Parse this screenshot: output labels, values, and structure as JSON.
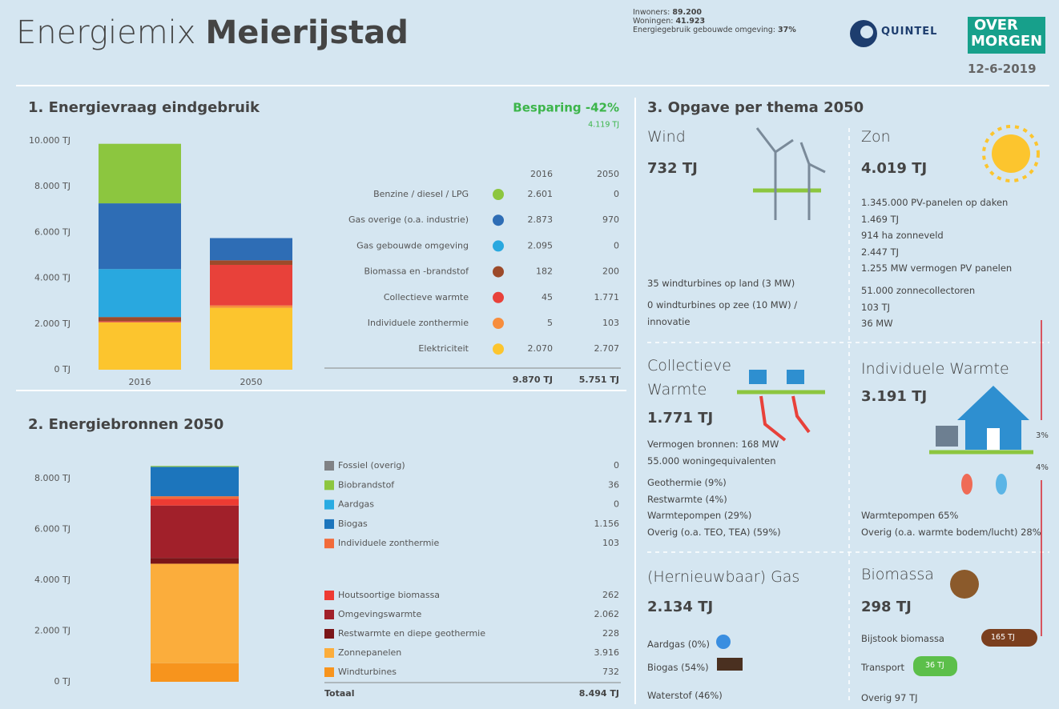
{
  "header": {
    "title_light": "Energiemix",
    "title_bold": "Meierijstad",
    "info": [
      {
        "label": "Inwoners:",
        "value": "89.200"
      },
      {
        "label": "Woningen:",
        "value": "41.923"
      },
      {
        "label": "Energiegebruik gebouwde omgeving:",
        "value": "37%"
      }
    ],
    "logo1": "QUINTEL",
    "logo2_line1": "OVER",
    "logo2_line2": "MORGEN",
    "date": "12-6-2019"
  },
  "sections": [
    "1. Energievraag eindgebruik",
    "2. Energiebronnen 2050",
    "3. Opgave per thema 2050"
  ],
  "chart_data": [
    {
      "type": "stacked_bar",
      "categories": [
        "2016",
        "2050"
      ],
      "ylim": [
        0,
        10000
      ],
      "yticks": [
        {
          "value": 0,
          "label": "0 TJ"
        },
        {
          "value": 2000,
          "label": "2.000 TJ"
        },
        {
          "value": 4000,
          "label": "4.000 TJ"
        },
        {
          "value": 6000,
          "label": "6.000 TJ"
        },
        {
          "value": 8000,
          "label": "8.000 TJ"
        },
        {
          "value": 10000,
          "label": "10.000 TJ"
        }
      ],
      "series": [
        {
          "name": "Elektriciteit",
          "color": "#fcc52e",
          "values": [
            2070,
            2707
          ],
          "value_labels": [
            "2.070",
            "2.707"
          ]
        },
        {
          "name": "Individuele zonthermie",
          "color": "#f78d3d",
          "values": [
            5,
            103
          ],
          "value_labels": [
            "5",
            "103"
          ]
        },
        {
          "name": "Collectieve warmte",
          "color": "#e8413a",
          "values": [
            45,
            1771
          ],
          "value_labels": [
            "45",
            "1.771"
          ]
        },
        {
          "name": "Biomassa en -brandstof",
          "color": "#9c4a2a",
          "values": [
            182,
            200
          ],
          "value_labels": [
            "182",
            "200"
          ]
        },
        {
          "name": "Gas gebouwde omgeving",
          "color": "#29a8df",
          "values": [
            2095,
            0
          ],
          "value_labels": [
            "2.095",
            "0"
          ]
        },
        {
          "name": "Gas overige (o.a. industrie)",
          "color": "#2e6db5",
          "values": [
            2873,
            970
          ],
          "value_labels": [
            "2.873",
            "970"
          ]
        },
        {
          "name": "Benzine / diesel / LPG",
          "color": "#8cc63f",
          "values": [
            2601,
            0
          ],
          "value_labels": [
            "2.601",
            "0"
          ]
        }
      ],
      "total_labels": [
        "9.870 TJ",
        "5.751 TJ"
      ],
      "savings": "Besparing -42%",
      "savings_amount": "4.119 TJ"
    },
    {
      "type": "stacked_bar",
      "ylim": [
        0,
        8800
      ],
      "yticks": [
        {
          "value": 0,
          "label": "0 TJ"
        },
        {
          "value": 2000,
          "label": "2.000 TJ"
        },
        {
          "value": 4000,
          "label": "4.000 TJ"
        },
        {
          "value": 6000,
          "label": "6.000 TJ"
        },
        {
          "value": 8000,
          "label": "8.000 TJ"
        }
      ],
      "series": [
        {
          "name": "Fossiel (overig)",
          "color": "#808285",
          "values": [
            0
          ],
          "value_labels": [
            "0"
          ]
        },
        {
          "name": "Biobrandstof",
          "color": "#8dc63f",
          "values": [
            36
          ],
          "value_labels": [
            "36"
          ]
        },
        {
          "name": "Aardgas",
          "color": "#29abe2",
          "values": [
            0
          ],
          "value_labels": [
            "0"
          ]
        },
        {
          "name": "Biogas",
          "color": "#1c75bc",
          "values": [
            1156
          ],
          "value_labels": [
            "1.156"
          ]
        },
        {
          "name": "Individuele zonthermie",
          "color": "#f26b3a",
          "values": [
            103
          ],
          "value_labels": [
            "103"
          ]
        },
        {
          "name": "Houtsoortige biomassa",
          "color": "#ee3b33",
          "values": [
            262
          ],
          "value_labels": [
            "262"
          ]
        },
        {
          "name": "Omgevingswarmte",
          "color": "#a1202a",
          "values": [
            2062
          ],
          "value_labels": [
            "2.062"
          ]
        },
        {
          "name": "Restwarmte en diepe geothermie",
          "color": "#7a1518",
          "values": [
            228
          ],
          "value_labels": [
            "228"
          ]
        },
        {
          "name": "Zonnepanelen",
          "color": "#fbad3c",
          "values": [
            3916
          ],
          "value_labels": [
            "3.916"
          ]
        },
        {
          "name": "Windturbines",
          "color": "#f7941d",
          "values": [
            732
          ],
          "value_labels": [
            "732"
          ]
        }
      ],
      "total_name": "Totaal",
      "total_label": "8.494 TJ"
    }
  ],
  "themes": [
    {
      "title": "Wind",
      "amount": "732 TJ",
      "blocks": [
        [
          "35 windturbines op land (3 MW)"
        ],
        [
          "0 windturbines op zee (10 MW) / innovatie"
        ]
      ]
    },
    {
      "title": "Zon",
      "amount": "4.019 TJ",
      "blocks": [
        [
          "1.345.000 PV-panelen op daken",
          "1.469 TJ",
          "914 ha zonneveld",
          "2.447 TJ",
          "1.255 MW vermogen PV panelen"
        ],
        [
          "51.000 zonnecollectoren",
          "103 TJ",
          "36 MW"
        ]
      ]
    },
    {
      "title": "Collectieve Warmte",
      "amount": "1.771 TJ",
      "blocks": [
        [
          "Vermogen bronnen: 168 MW",
          "55.000 woningequivalenten"
        ],
        [
          "Geothermie (9%)",
          "Restwarmte (4%)",
          "Warmtepompen (29%)",
          "Overig (o.a. TEO, TEA) (59%)"
        ]
      ]
    },
    {
      "title": "Individuele Warmte",
      "amount": "3.191 TJ",
      "blocks": [
        [
          "Warmtepompen 65%",
          "Overig (o.a. warmte bodem/lucht) 28%"
        ]
      ],
      "shares": [
        "3%",
        "4%"
      ]
    },
    {
      "title": "(Hernieuwbaar) Gas",
      "amount": "2.134 TJ",
      "blocks": [
        [
          "Aardgas (0%)"
        ],
        [
          "Biogas (54%)"
        ],
        [
          "Waterstof (46%)"
        ]
      ]
    },
    {
      "title": "Biomassa",
      "amount": "298 TJ",
      "blocks": [
        [
          "Bijstook biomassa"
        ],
        [
          "Transport"
        ],
        [
          "Overig 97 TJ"
        ]
      ],
      "badges": [
        "165 TJ",
        "36 TJ"
      ]
    }
  ]
}
